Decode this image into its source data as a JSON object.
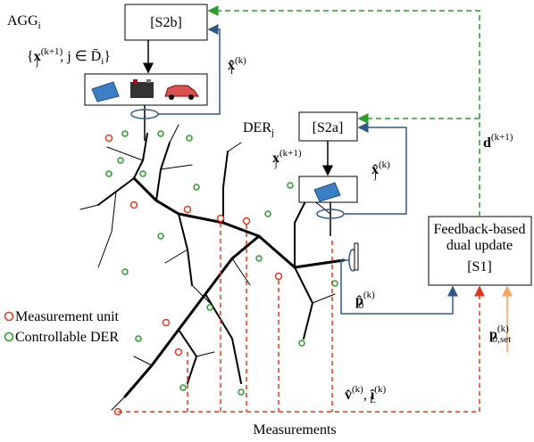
{
  "agg": {
    "name": "AGG",
    "index": "i",
    "label": "[S2b]",
    "input": {
      "open": "{",
      "base": "x",
      "sub": "j",
      "sup": "(k+1)",
      "mid": ", j ∈ ",
      "set": "D̄",
      "setsub": "i",
      "close": "}"
    },
    "estimate": {
      "base": "x̂̂",
      "sub": "i",
      "sup": "(k)"
    }
  },
  "der": {
    "name": "DER",
    "index": "j",
    "label": "[S2a]",
    "input": {
      "base": "x",
      "sub": "j",
      "sup": "(k+1)"
    },
    "estimate": {
      "base": "x̂",
      "sub": "j",
      "sup": "(k)"
    }
  },
  "update": {
    "lines": [
      "Feedback-based",
      "dual update",
      "[S1]"
    ]
  },
  "dual": {
    "base": "d",
    "sup": "(k+1)"
  },
  "power": {
    "base": "p̂",
    "sub": "0",
    "sup": "(k)"
  },
  "setpoint": {
    "base": "p",
    "sub": "0,set",
    "sup": "(k)"
  },
  "meas": {
    "v": "v̂",
    "vsup": "(k)",
    "sep": ", ",
    "i": "î",
    "isub": "L",
    "isup": "(k)"
  },
  "measurements": "Measurements",
  "legend": [
    "Measurement unit",
    "Controllable DER"
  ]
}
